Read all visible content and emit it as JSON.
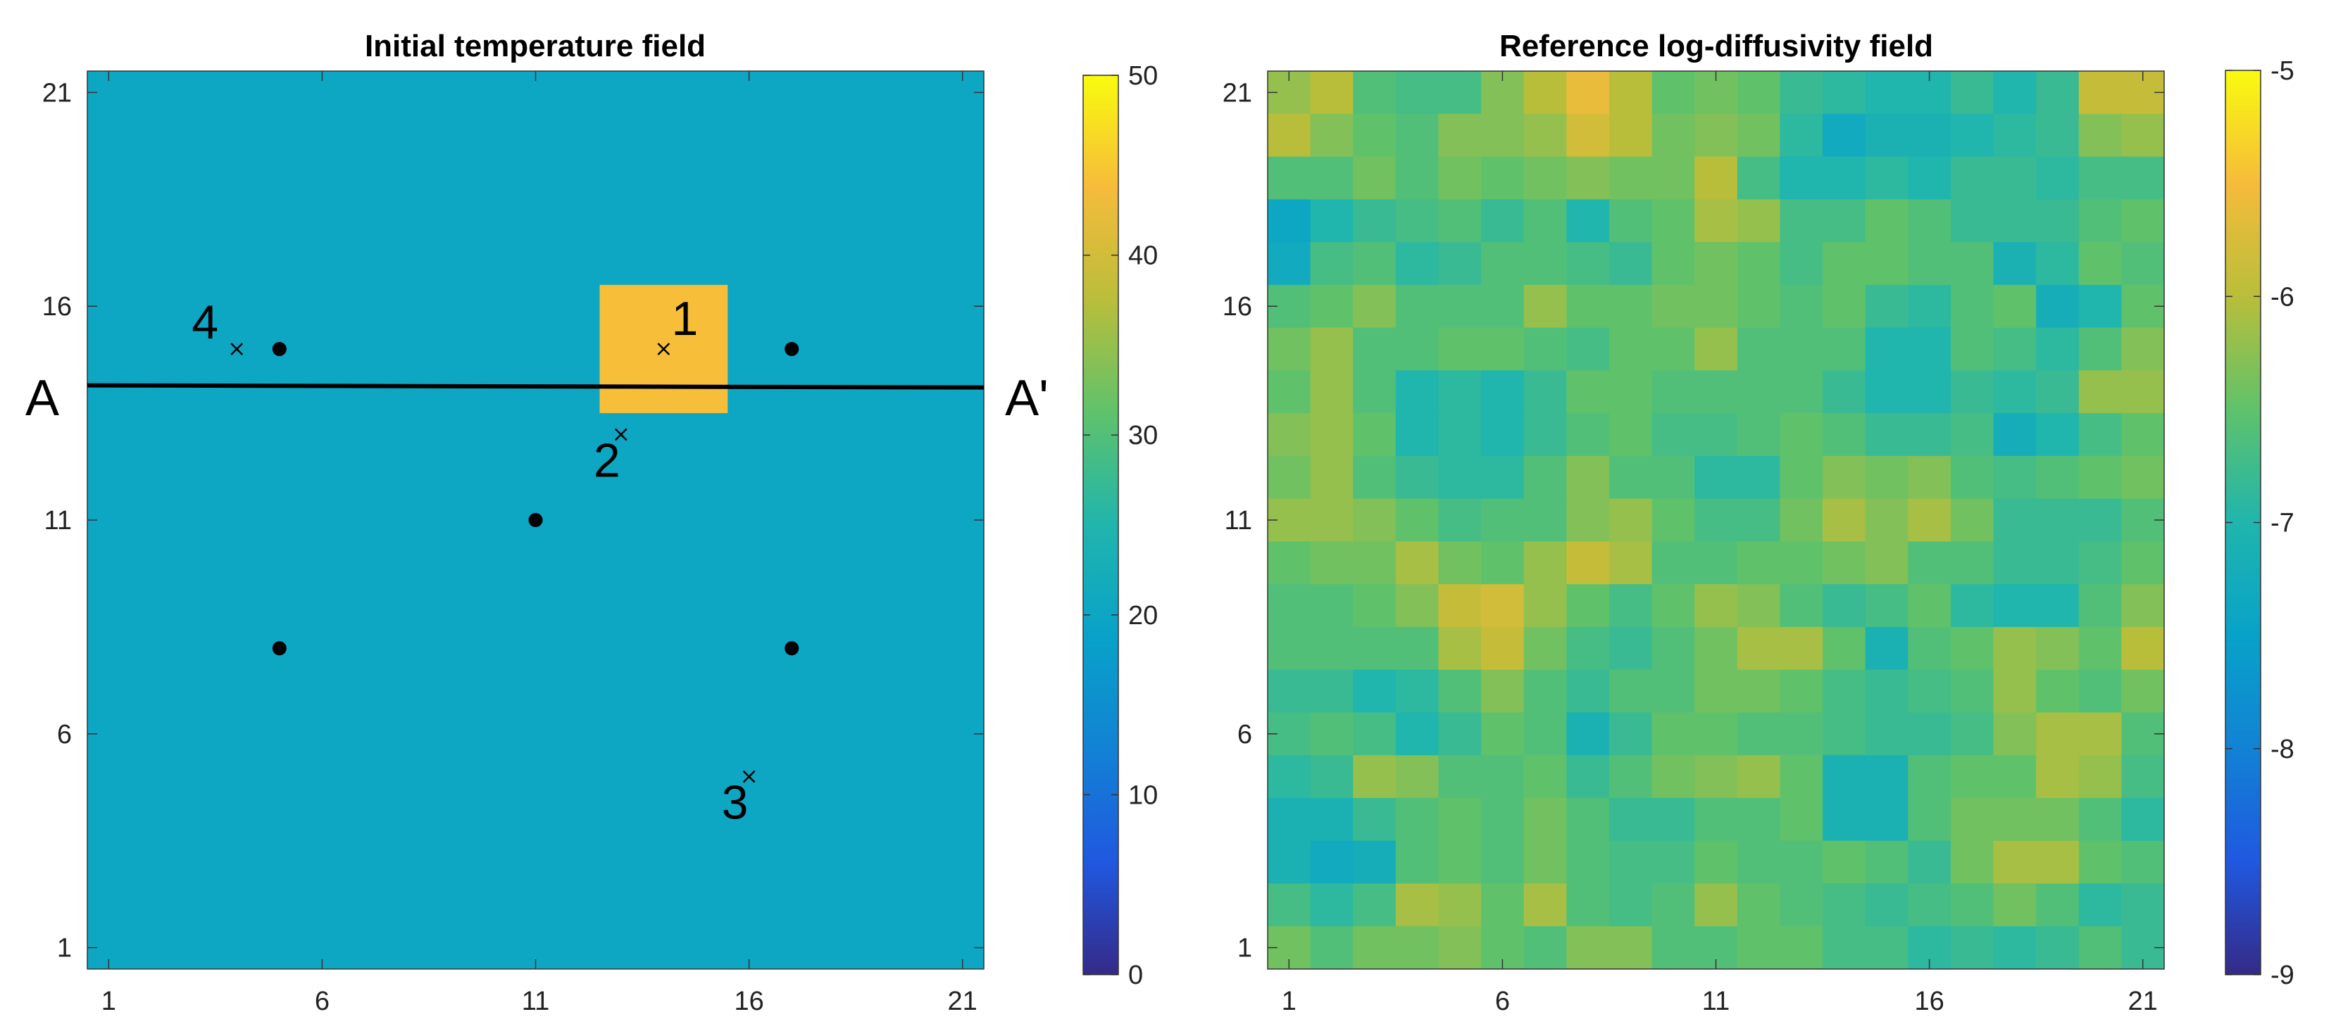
{
  "chart_data": [
    {
      "type": "heatmap",
      "title": "Initial temperature field",
      "xlabel": "",
      "ylabel": "",
      "xlim": [
        0.5,
        21.5
      ],
      "ylim": [
        0.5,
        21.5
      ],
      "x_ticks": [
        "1",
        "6",
        "11",
        "16",
        "21"
      ],
      "y_ticks": [
        "1",
        "6",
        "11",
        "16",
        "21"
      ],
      "background_value": 20,
      "hot_region": {
        "x_range": [
          12.5,
          15.5
        ],
        "y_range": [
          13.5,
          16.5
        ],
        "value": 44
      },
      "colorbar": {
        "min": 0,
        "max": 50,
        "ticks": [
          "0",
          "10",
          "20",
          "30",
          "40",
          "50"
        ]
      },
      "injection_wells": [
        {
          "x": 5,
          "y": 15
        },
        {
          "x": 17,
          "y": 15
        },
        {
          "x": 11,
          "y": 11
        },
        {
          "x": 5,
          "y": 8
        },
        {
          "x": 17,
          "y": 8
        }
      ],
      "observation_points": [
        {
          "label": "1",
          "x": 14,
          "y": 15
        },
        {
          "label": "2",
          "x": 13,
          "y": 13
        },
        {
          "label": "3",
          "x": 16,
          "y": 5
        },
        {
          "label": "4",
          "x": 4,
          "y": 15
        }
      ],
      "section_line": {
        "start_label": "A",
        "end_label": "A'",
        "y_start": 14.15,
        "y_end": 14.1
      }
    },
    {
      "type": "heatmap",
      "title": "Reference log-diffusivity field",
      "xlabel": "",
      "ylabel": "",
      "xlim": [
        0.5,
        21.5
      ],
      "ylim": [
        0.5,
        21.5
      ],
      "x_ticks": [
        "1",
        "6",
        "11",
        "16",
        "21"
      ],
      "y_ticks": [
        "1",
        "6",
        "11",
        "16",
        "21"
      ],
      "colorbar": {
        "min": -9,
        "max": -5,
        "ticks": [
          "-5",
          "-6",
          "-7",
          "-8",
          "-9"
        ]
      },
      "grid_rows_top_to_bottom": [
        [
          -6.2,
          -6.0,
          -6.6,
          -6.7,
          -6.7,
          -6.3,
          -6.0,
          -5.6,
          -6.0,
          -6.5,
          -6.4,
          -6.5,
          -6.8,
          -6.9,
          -7.0,
          -7.0,
          -6.8,
          -7.0,
          -6.8,
          -5.9,
          -5.9
        ],
        [
          -6.0,
          -6.3,
          -6.5,
          -6.6,
          -6.3,
          -6.3,
          -6.2,
          -5.8,
          -6.0,
          -6.4,
          -6.3,
          -6.4,
          -6.9,
          -7.3,
          -7.1,
          -7.1,
          -7.0,
          -6.9,
          -6.8,
          -6.3,
          -6.2
        ],
        [
          -6.6,
          -6.6,
          -6.4,
          -6.6,
          -6.4,
          -6.5,
          -6.4,
          -6.3,
          -6.4,
          -6.4,
          -6.0,
          -6.7,
          -7.0,
          -7.0,
          -6.9,
          -7.0,
          -6.8,
          -6.8,
          -6.9,
          -6.7,
          -6.7
        ],
        [
          -7.4,
          -7.0,
          -6.8,
          -6.7,
          -6.6,
          -6.8,
          -6.6,
          -7.0,
          -6.6,
          -6.5,
          -6.1,
          -6.2,
          -6.7,
          -6.7,
          -6.5,
          -6.6,
          -6.8,
          -6.8,
          -6.8,
          -6.6,
          -6.5
        ],
        [
          -7.3,
          -6.7,
          -6.6,
          -6.9,
          -6.8,
          -6.6,
          -6.6,
          -6.7,
          -6.8,
          -6.5,
          -6.4,
          -6.5,
          -6.7,
          -6.5,
          -6.5,
          -6.6,
          -6.6,
          -7.1,
          -6.9,
          -6.5,
          -6.6
        ],
        [
          -6.6,
          -6.5,
          -6.3,
          -6.6,
          -6.6,
          -6.6,
          -6.2,
          -6.5,
          -6.5,
          -6.4,
          -6.4,
          -6.5,
          -6.6,
          -6.5,
          -6.8,
          -6.9,
          -6.6,
          -6.5,
          -7.2,
          -7.0,
          -6.5
        ],
        [
          -6.4,
          -6.2,
          -6.6,
          -6.6,
          -6.5,
          -6.5,
          -6.6,
          -6.7,
          -6.5,
          -6.5,
          -6.2,
          -6.6,
          -6.6,
          -6.6,
          -7.0,
          -7.0,
          -6.6,
          -6.7,
          -6.9,
          -6.6,
          -6.3
        ],
        [
          -6.5,
          -6.2,
          -6.6,
          -7.0,
          -6.9,
          -7.0,
          -6.8,
          -6.5,
          -6.5,
          -6.6,
          -6.6,
          -6.6,
          -6.6,
          -6.8,
          -7.0,
          -7.0,
          -6.8,
          -6.9,
          -6.8,
          -6.2,
          -6.2
        ],
        [
          -6.3,
          -6.2,
          -6.5,
          -7.0,
          -6.9,
          -7.0,
          -6.8,
          -6.6,
          -6.5,
          -6.7,
          -6.7,
          -6.6,
          -6.5,
          -6.6,
          -6.8,
          -6.8,
          -6.7,
          -7.2,
          -7.0,
          -6.7,
          -6.5
        ],
        [
          -6.4,
          -6.2,
          -6.6,
          -6.8,
          -6.9,
          -6.9,
          -6.6,
          -6.3,
          -6.6,
          -6.6,
          -6.9,
          -6.9,
          -6.5,
          -6.3,
          -6.4,
          -6.3,
          -6.6,
          -6.7,
          -6.6,
          -6.5,
          -6.4
        ],
        [
          -6.2,
          -6.2,
          -6.3,
          -6.5,
          -6.7,
          -6.6,
          -6.6,
          -6.3,
          -6.2,
          -6.5,
          -6.7,
          -6.7,
          -6.4,
          -6.1,
          -6.3,
          -6.1,
          -6.4,
          -6.8,
          -6.8,
          -6.8,
          -6.6
        ],
        [
          -6.5,
          -6.4,
          -6.4,
          -6.1,
          -6.4,
          -6.5,
          -6.2,
          -5.9,
          -6.1,
          -6.6,
          -6.6,
          -6.5,
          -6.5,
          -6.4,
          -6.3,
          -6.6,
          -6.6,
          -6.8,
          -6.8,
          -6.7,
          -6.5
        ],
        [
          -6.6,
          -6.6,
          -6.5,
          -6.3,
          -5.9,
          -5.8,
          -6.2,
          -6.5,
          -6.7,
          -6.5,
          -6.2,
          -6.3,
          -6.6,
          -6.8,
          -6.7,
          -6.5,
          -6.9,
          -7.0,
          -7.0,
          -6.6,
          -6.3
        ],
        [
          -6.6,
          -6.6,
          -6.6,
          -6.6,
          -6.1,
          -5.9,
          -6.4,
          -6.7,
          -6.8,
          -6.6,
          -6.4,
          -6.1,
          -6.1,
          -6.5,
          -7.1,
          -6.6,
          -6.5,
          -6.2,
          -6.3,
          -6.5,
          -6.0
        ],
        [
          -6.8,
          -6.8,
          -7.0,
          -6.9,
          -6.6,
          -6.3,
          -6.6,
          -6.8,
          -6.6,
          -6.6,
          -6.4,
          -6.4,
          -6.5,
          -6.7,
          -6.8,
          -6.7,
          -6.6,
          -6.2,
          -6.5,
          -6.6,
          -6.4
        ],
        [
          -6.7,
          -6.6,
          -6.7,
          -7.0,
          -6.8,
          -6.5,
          -6.6,
          -7.1,
          -6.8,
          -6.5,
          -6.5,
          -6.6,
          -6.6,
          -6.7,
          -6.8,
          -6.8,
          -6.7,
          -6.3,
          -6.1,
          -6.1,
          -6.6
        ],
        [
          -6.9,
          -6.8,
          -6.2,
          -6.3,
          -6.6,
          -6.6,
          -6.5,
          -6.8,
          -6.6,
          -6.4,
          -6.3,
          -6.2,
          -6.5,
          -7.1,
          -7.1,
          -6.6,
          -6.5,
          -6.5,
          -6.1,
          -6.2,
          -6.7
        ],
        [
          -7.1,
          -7.1,
          -6.8,
          -6.6,
          -6.5,
          -6.6,
          -6.4,
          -6.6,
          -6.8,
          -6.8,
          -6.6,
          -6.6,
          -6.5,
          -7.1,
          -7.1,
          -6.6,
          -6.4,
          -6.4,
          -6.4,
          -6.6,
          -6.9
        ],
        [
          -7.1,
          -7.3,
          -7.2,
          -6.6,
          -6.5,
          -6.6,
          -6.4,
          -6.6,
          -6.7,
          -6.7,
          -6.5,
          -6.6,
          -6.6,
          -6.5,
          -6.6,
          -6.8,
          -6.4,
          -6.1,
          -6.1,
          -6.5,
          -6.6
        ],
        [
          -6.7,
          -6.9,
          -6.7,
          -6.1,
          -6.2,
          -6.5,
          -6.1,
          -6.6,
          -6.7,
          -6.6,
          -6.2,
          -6.5,
          -6.6,
          -6.7,
          -6.8,
          -6.7,
          -6.6,
          -6.4,
          -6.6,
          -6.9,
          -6.8
        ],
        [
          -6.4,
          -6.6,
          -6.4,
          -6.4,
          -6.3,
          -6.5,
          -6.6,
          -6.3,
          -6.3,
          -6.6,
          -6.6,
          -6.5,
          -6.5,
          -6.7,
          -6.7,
          -6.9,
          -6.8,
          -6.9,
          -6.8,
          -6.6,
          -6.8
        ]
      ]
    }
  ]
}
